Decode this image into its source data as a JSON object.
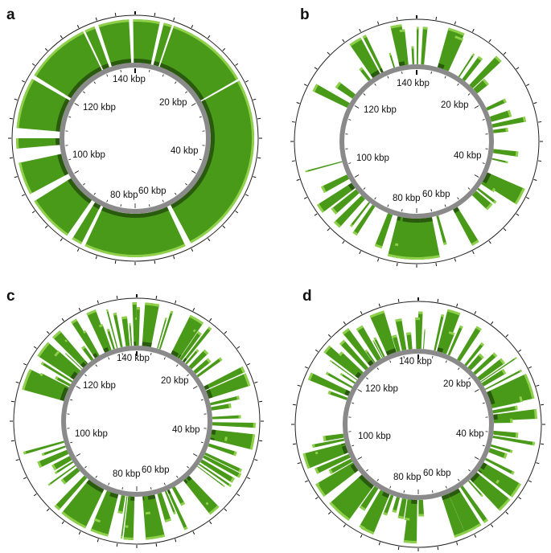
{
  "figure": {
    "panels": [
      {
        "letter": "a",
        "tick_labels": [
          "140 kbp",
          "20 kbp",
          "120 kbp",
          "40 kbp",
          "100 kbp",
          "60 kbp",
          "80 kbp"
        ],
        "coverage_style": "continuous"
      },
      {
        "letter": "b",
        "tick_labels": [
          "140 kbp",
          "20 kbp",
          "120 kbp",
          "40 kbp",
          "100 kbp",
          "60 kbp",
          "80 kbp"
        ],
        "coverage_style": "sparse"
      },
      {
        "letter": "c",
        "tick_labels": [
          "140 kbp",
          "20 kbp",
          "120 kbp",
          "40 kbp",
          "100 kbp",
          "60 kbp",
          "80 kbp"
        ],
        "coverage_style": "fragmented"
      },
      {
        "letter": "d",
        "tick_labels": [
          "140 kbp",
          "20 kbp",
          "120 kbp",
          "40 kbp",
          "100 kbp",
          "60 kbp",
          "80 kbp"
        ],
        "coverage_style": "fragmented"
      }
    ],
    "colors": {
      "coverage_fill": "#4a9a1a",
      "coverage_light": "#8fd04a",
      "coverage_dark": "#2a5a0e",
      "backbone_ring": "#8a8a8a",
      "outer_ring": "#222222",
      "tick": "#111111"
    }
  }
}
